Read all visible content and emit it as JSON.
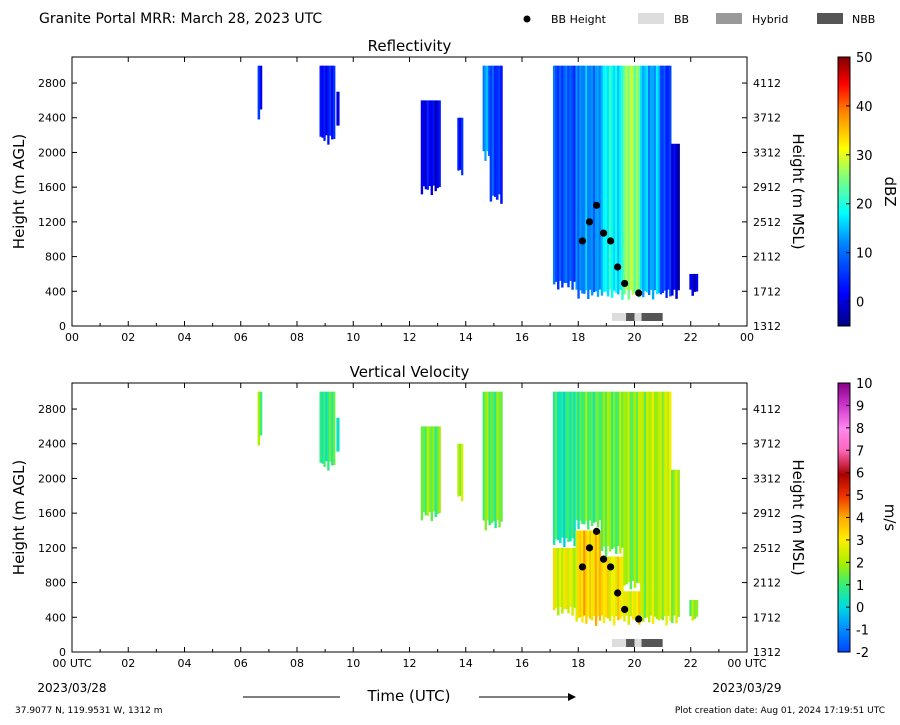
{
  "header": {
    "title": "Granite Portal MRR:  March 28, 2023 UTC",
    "legend": [
      {
        "label": "BB Height",
        "kind": "dot",
        "color": "#000000"
      },
      {
        "label": "BB",
        "kind": "box",
        "color": "#dddddd"
      },
      {
        "label": "Hybrid",
        "kind": "box",
        "color": "#999999"
      },
      {
        "label": "NBB",
        "kind": "box",
        "color": "#555555"
      }
    ]
  },
  "footer": {
    "location": "37.9077 N, 119.9531 W, 1312 m",
    "creation": "Plot creation date: Aug 01, 2024 17:19:51 UTC",
    "time_axis_label": "Time (UTC)",
    "date_left": "2023/03/28",
    "date_right": "2023/03/29"
  },
  "chart_data": [
    {
      "type": "heatmap",
      "title": "Reflectivity",
      "ylabel": "Height (m AGL)",
      "ylabel_right": "Height (m MSL)",
      "xlim": [
        0,
        24
      ],
      "ylim": [
        0,
        3100
      ],
      "x_ticks": [
        "00",
        "02",
        "04",
        "06",
        "08",
        "10",
        "12",
        "14",
        "16",
        "18",
        "20",
        "22",
        "00"
      ],
      "y_ticks": [
        0,
        400,
        800,
        1200,
        1600,
        2000,
        2400,
        2800
      ],
      "y_ticks_right": [
        "1312",
        "1712",
        "2112",
        "2512",
        "2912",
        "3312",
        "3712",
        "4112"
      ],
      "colorbar": {
        "label": "dBZ",
        "min": -5,
        "max": 50,
        "ticks": [
          "0",
          "10",
          "20",
          "30",
          "40",
          "50"
        ],
        "tick_values": [
          0,
          10,
          20,
          30,
          40,
          50
        ]
      },
      "echo_segments": [
        {
          "t0": 6.6,
          "t1": 6.75,
          "top": 3000,
          "bottom": 2380,
          "value": 2
        },
        {
          "t0": 8.8,
          "t1": 9.35,
          "top": 3000,
          "bottom": 2080,
          "value": 3
        },
        {
          "t0": 9.4,
          "t1": 9.5,
          "top": 2700,
          "bottom": 2200,
          "value": 3
        },
        {
          "t0": 12.4,
          "t1": 13.1,
          "top": 2600,
          "bottom": 1500,
          "value": 1
        },
        {
          "t0": 13.7,
          "t1": 13.9,
          "top": 2400,
          "bottom": 1700,
          "value": 3
        },
        {
          "t0": 14.6,
          "t1": 14.85,
          "top": 3000,
          "bottom": 1900,
          "value": 12
        },
        {
          "t0": 14.85,
          "t1": 15.3,
          "top": 3000,
          "bottom": 1400,
          "value": 6
        },
        {
          "t0": 17.1,
          "t1": 17.9,
          "top": 3000,
          "bottom": 400,
          "value": 8
        },
        {
          "t0": 17.9,
          "t1": 18.8,
          "top": 3000,
          "bottom": 300,
          "value": 12
        },
        {
          "t0": 18.8,
          "t1": 19.6,
          "top": 3000,
          "bottom": 300,
          "value": 18
        },
        {
          "t0": 19.6,
          "t1": 20.2,
          "top": 3000,
          "bottom": 300,
          "value": 26
        },
        {
          "t0": 20.2,
          "t1": 20.9,
          "top": 3000,
          "bottom": 300,
          "value": 14
        },
        {
          "t0": 20.9,
          "t1": 21.3,
          "top": 3000,
          "bottom": 300,
          "value": 6
        },
        {
          "t0": 21.3,
          "t1": 21.6,
          "top": 2100,
          "bottom": 300,
          "value": 0
        },
        {
          "t0": 21.95,
          "t1": 22.25,
          "top": 600,
          "bottom": 300,
          "value": 0
        }
      ],
      "bb_height": [
        {
          "time": 18.15,
          "height": 980
        },
        {
          "time": 18.4,
          "height": 1200
        },
        {
          "time": 18.65,
          "height": 1390
        },
        {
          "time": 18.9,
          "height": 1070
        },
        {
          "time": 19.15,
          "height": 980
        },
        {
          "time": 19.4,
          "height": 680
        },
        {
          "time": 19.65,
          "height": 490
        },
        {
          "time": 20.15,
          "height": 380
        }
      ],
      "bb_type": [
        {
          "t0": 19.2,
          "t1": 19.7,
          "type": "BB"
        },
        {
          "t0": 19.7,
          "t1": 20.0,
          "type": "NBB"
        },
        {
          "t0": 20.0,
          "t1": 20.25,
          "type": "BB"
        },
        {
          "t0": 20.25,
          "t1": 21.0,
          "type": "NBB"
        }
      ]
    },
    {
      "type": "heatmap",
      "title": "Vertical Velocity",
      "ylabel": "Height (m AGL)",
      "ylabel_right": "Height (m MSL)",
      "xlim": [
        0,
        24
      ],
      "ylim": [
        0,
        3100
      ],
      "x_ticks": [
        "00 UTC",
        "02",
        "04",
        "06",
        "08",
        "10",
        "12",
        "14",
        "16",
        "18",
        "20",
        "22",
        "00 UTC"
      ],
      "y_ticks": [
        0,
        400,
        800,
        1200,
        1600,
        2000,
        2400,
        2800
      ],
      "y_ticks_right": [
        "1312",
        "1712",
        "2112",
        "2512",
        "2912",
        "3312",
        "3712",
        "4112"
      ],
      "colorbar": {
        "label": "m/s",
        "min": -2,
        "max": 10,
        "ticks": [
          "-2",
          "-1",
          "0",
          "1",
          "2",
          "3",
          "4",
          "5",
          "6",
          "7",
          "8",
          "9",
          "10"
        ],
        "tick_values": [
          -2,
          -1,
          0,
          1,
          2,
          3,
          4,
          5,
          6,
          7,
          8,
          9,
          10
        ]
      },
      "echo_segments": [
        {
          "t0": 6.6,
          "t1": 6.75,
          "top": 3000,
          "bottom": 2380,
          "value": 1.2
        },
        {
          "t0": 8.8,
          "t1": 9.35,
          "top": 3000,
          "bottom": 2080,
          "value": 0.9
        },
        {
          "t0": 9.4,
          "t1": 9.5,
          "top": 2700,
          "bottom": 2200,
          "value": 0.9
        },
        {
          "t0": 12.4,
          "t1": 13.1,
          "top": 2600,
          "bottom": 1500,
          "value": 1.5
        },
        {
          "t0": 13.7,
          "t1": 13.9,
          "top": 2400,
          "bottom": 1700,
          "value": 2.0
        },
        {
          "t0": 14.6,
          "t1": 15.3,
          "top": 3000,
          "bottom": 1400,
          "value": 1.4
        },
        {
          "t0": 17.1,
          "t1": 17.9,
          "top": 3000,
          "bottom": 1200,
          "value": 0.6
        },
        {
          "t0": 17.1,
          "t1": 17.9,
          "top": 1200,
          "bottom": 400,
          "value": 2.6
        },
        {
          "t0": 17.9,
          "t1": 18.8,
          "top": 3000,
          "bottom": 1400,
          "value": 1.2
        },
        {
          "t0": 17.9,
          "t1": 18.8,
          "top": 1400,
          "bottom": 300,
          "value": 3.4
        },
        {
          "t0": 18.8,
          "t1": 19.6,
          "top": 3000,
          "bottom": 1100,
          "value": 1.5
        },
        {
          "t0": 18.8,
          "t1": 19.6,
          "top": 1100,
          "bottom": 300,
          "value": 3.0
        },
        {
          "t0": 19.6,
          "t1": 20.2,
          "top": 3000,
          "bottom": 700,
          "value": 1.8
        },
        {
          "t0": 19.6,
          "t1": 20.2,
          "top": 700,
          "bottom": 300,
          "value": 2.8
        },
        {
          "t0": 20.2,
          "t1": 20.9,
          "top": 3000,
          "bottom": 300,
          "value": 2.1
        },
        {
          "t0": 20.9,
          "t1": 21.3,
          "top": 3000,
          "bottom": 300,
          "value": 2.3
        },
        {
          "t0": 21.3,
          "t1": 21.6,
          "top": 2100,
          "bottom": 300,
          "value": 2.0
        },
        {
          "t0": 21.95,
          "t1": 22.25,
          "top": 600,
          "bottom": 300,
          "value": 1.6
        }
      ],
      "bb_height": [
        {
          "time": 18.15,
          "height": 980
        },
        {
          "time": 18.4,
          "height": 1200
        },
        {
          "time": 18.65,
          "height": 1390
        },
        {
          "time": 18.9,
          "height": 1070
        },
        {
          "time": 19.15,
          "height": 980
        },
        {
          "time": 19.4,
          "height": 680
        },
        {
          "time": 19.65,
          "height": 490
        },
        {
          "time": 20.15,
          "height": 380
        }
      ],
      "bb_type": [
        {
          "t0": 19.2,
          "t1": 19.7,
          "type": "BB"
        },
        {
          "t0": 19.7,
          "t1": 20.0,
          "type": "NBB"
        },
        {
          "t0": 20.0,
          "t1": 20.25,
          "type": "BB"
        },
        {
          "t0": 20.25,
          "t1": 21.0,
          "type": "NBB"
        }
      ]
    }
  ]
}
